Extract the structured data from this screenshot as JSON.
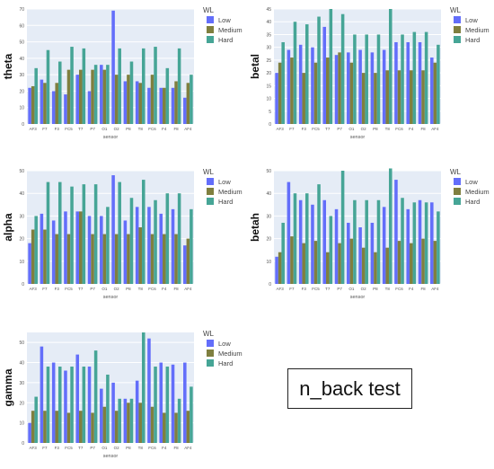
{
  "note": "n_back test",
  "chart_data": [
    {
      "type": "bar",
      "ylabel": "theta",
      "xlabel": "sensor",
      "ylim": [
        0,
        70
      ],
      "yticks": [
        0,
        10,
        20,
        30,
        40,
        50,
        60,
        70
      ],
      "legend_title": "WL",
      "categories": [
        "AF3",
        "F7",
        "F3",
        "FC5",
        "T7",
        "P7",
        "O1",
        "O2",
        "P8",
        "T8",
        "FC6",
        "F4",
        "F8",
        "AF4"
      ],
      "series": [
        {
          "name": "Low",
          "color": "#636efa",
          "values": [
            22,
            27,
            20,
            18,
            30,
            20,
            36,
            69,
            26,
            26,
            22,
            22,
            22,
            16
          ]
        },
        {
          "name": "Medium",
          "color": "#7f7f3f",
          "values": [
            23,
            25,
            25,
            33,
            33,
            33,
            33,
            30,
            30,
            25,
            30,
            22,
            26,
            25
          ]
        },
        {
          "name": "Hard",
          "color": "#46a596",
          "values": [
            34,
            45,
            38,
            47,
            46,
            36,
            36,
            46,
            38,
            46,
            47,
            34,
            46,
            30
          ]
        }
      ]
    },
    {
      "type": "bar",
      "ylabel": "betal",
      "xlabel": "sensor",
      "ylim": [
        0,
        45
      ],
      "yticks": [
        0,
        5,
        10,
        15,
        20,
        25,
        30,
        35,
        40,
        45
      ],
      "legend_title": "WL",
      "categories": [
        "AF3",
        "F7",
        "F3",
        "FC5",
        "T7",
        "P7",
        "O1",
        "O2",
        "P8",
        "T8",
        "FC6",
        "F4",
        "F8",
        "AF4"
      ],
      "series": [
        {
          "name": "Low",
          "color": "#636efa",
          "values": [
            20,
            29,
            31,
            30,
            38,
            27,
            28,
            29,
            28,
            29,
            32,
            32,
            32,
            26
          ]
        },
        {
          "name": "Medium",
          "color": "#7f7f3f",
          "values": [
            24,
            26,
            20,
            24,
            26,
            28,
            24,
            20,
            20,
            21,
            21,
            21,
            21,
            24
          ]
        },
        {
          "name": "Hard",
          "color": "#46a596",
          "values": [
            32,
            40,
            39,
            42,
            45,
            43,
            35,
            35,
            35,
            45,
            35,
            36,
            36,
            31
          ]
        }
      ]
    },
    {
      "type": "bar",
      "ylabel": "alpha",
      "xlabel": "sensor",
      "ylim": [
        0,
        50
      ],
      "yticks": [
        0,
        10,
        20,
        30,
        40,
        50
      ],
      "legend_title": "WL",
      "categories": [
        "AF3",
        "F7",
        "F3",
        "FC5",
        "T7",
        "P7",
        "O1",
        "O2",
        "P8",
        "T8",
        "FC6",
        "F4",
        "F8",
        "AF4"
      ],
      "series": [
        {
          "name": "Low",
          "color": "#636efa",
          "values": [
            18,
            31,
            28,
            32,
            32,
            30,
            30,
            48,
            28,
            34,
            34,
            31,
            33,
            17
          ]
        },
        {
          "name": "Medium",
          "color": "#7f7f3f",
          "values": [
            24,
            24,
            22,
            22,
            32,
            22,
            22,
            22,
            22,
            25,
            22,
            22,
            22,
            20
          ]
        },
        {
          "name": "Hard",
          "color": "#46a596",
          "values": [
            30,
            45,
            45,
            43,
            44,
            44,
            34,
            45,
            38,
            46,
            37,
            40,
            40,
            33
          ]
        }
      ]
    },
    {
      "type": "bar",
      "ylabel": "betah",
      "xlabel": "sensor",
      "ylim": [
        0,
        50
      ],
      "yticks": [
        0,
        10,
        20,
        30,
        40,
        50
      ],
      "legend_title": "WL",
      "categories": [
        "AF3",
        "F7",
        "F3",
        "FC5",
        "T7",
        "P7",
        "O1",
        "O2",
        "P8",
        "T8",
        "FC6",
        "F4",
        "F8",
        "AF4"
      ],
      "series": [
        {
          "name": "Low",
          "color": "#636efa",
          "values": [
            12,
            45,
            37,
            35,
            37,
            33,
            27,
            25,
            27,
            34,
            46,
            33,
            37,
            36
          ]
        },
        {
          "name": "Medium",
          "color": "#7f7f3f",
          "values": [
            14,
            21,
            18,
            19,
            14,
            18,
            20,
            16,
            14,
            16,
            19,
            18,
            20,
            19
          ]
        },
        {
          "name": "Hard",
          "color": "#46a596",
          "values": [
            27,
            40,
            40,
            44,
            30,
            50,
            37,
            37,
            37,
            51,
            38,
            36,
            36,
            32
          ]
        }
      ]
    },
    {
      "type": "bar",
      "ylabel": "gamma",
      "xlabel": "sensor",
      "ylim": [
        0,
        55
      ],
      "yticks": [
        0,
        10,
        20,
        30,
        40,
        50
      ],
      "legend_title": "WL",
      "categories": [
        "AF3",
        "F7",
        "F3",
        "FC5",
        "T7",
        "P7",
        "O1",
        "O2",
        "P8",
        "T8",
        "FC6",
        "F4",
        "F8",
        "AF4"
      ],
      "series": [
        {
          "name": "Low",
          "color": "#636efa",
          "values": [
            10,
            48,
            40,
            36,
            44,
            38,
            27,
            30,
            22,
            31,
            52,
            40,
            39,
            40
          ]
        },
        {
          "name": "Medium",
          "color": "#7f7f3f",
          "values": [
            16,
            16,
            16,
            15,
            16,
            15,
            18,
            16,
            20,
            20,
            18,
            15,
            15,
            16
          ]
        },
        {
          "name": "Hard",
          "color": "#46a596",
          "values": [
            23,
            38,
            38,
            38,
            38,
            46,
            34,
            22,
            22,
            55,
            38,
            38,
            22,
            28
          ]
        }
      ]
    }
  ]
}
